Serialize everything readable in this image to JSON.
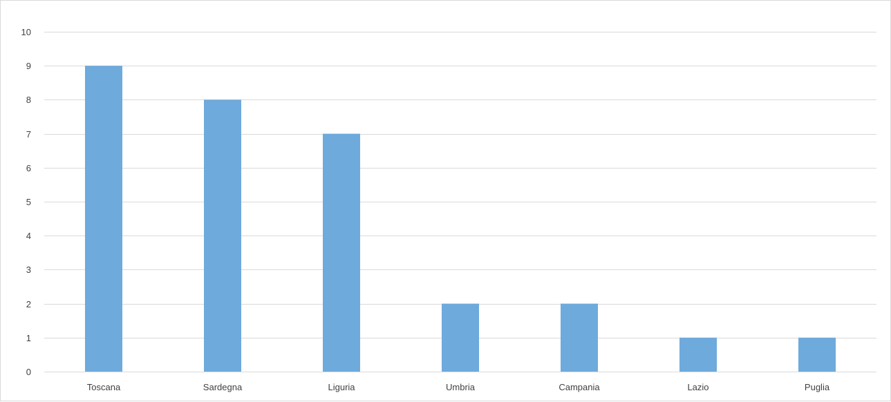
{
  "chart_data": {
    "type": "bar",
    "title": "",
    "xlabel": "",
    "ylabel": "",
    "categories": [
      "Toscana",
      "Sardegna",
      "Liguria",
      "Umbria",
      "Campania",
      "Lazio",
      "Puglia"
    ],
    "values": [
      9,
      8,
      7,
      2,
      2,
      1,
      1
    ],
    "ylim": [
      0,
      10
    ],
    "yticks": [
      "0",
      "1",
      "2",
      "3",
      "4",
      "5",
      "6",
      "7",
      "8",
      "9",
      "10"
    ],
    "grid": true,
    "legend": "none",
    "bar_color": "#6eaadc"
  }
}
